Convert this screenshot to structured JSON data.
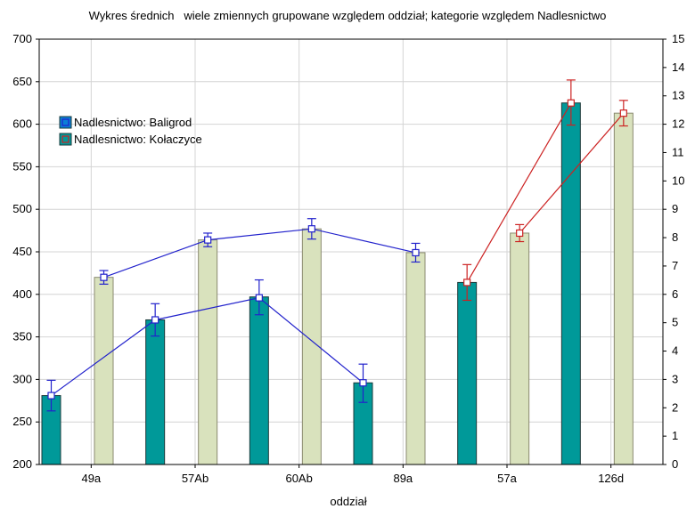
{
  "chart_data": {
    "type": "bar",
    "title": "Wykres średnich   wiele zmiennych grupowane względem oddział; kategorie względem Nadlesnictwo",
    "xlabel": "oddział",
    "ylabel": "",
    "categories": [
      "49a",
      "57Ab",
      "60Ab",
      "89a",
      "57a",
      "126d"
    ],
    "ylim": [
      200,
      700
    ],
    "yticks": [
      200,
      250,
      300,
      350,
      400,
      450,
      500,
      550,
      600,
      650,
      700
    ],
    "y2lim": [
      0,
      15
    ],
    "y2ticks": [
      0,
      1,
      2,
      3,
      4,
      5,
      6,
      7,
      8,
      9,
      10,
      11,
      12,
      13,
      14,
      15
    ],
    "grid": true,
    "legend_position": "top-left",
    "bars": [
      {
        "category": "49a",
        "teal": 281,
        "beige": 420
      },
      {
        "category": "57Ab",
        "teal": 370,
        "beige": 464
      },
      {
        "category": "60Ab",
        "teal": 397,
        "beige": 477
      },
      {
        "category": "89a",
        "teal": 296,
        "beige": 449
      },
      {
        "category": "57a",
        "teal": 414,
        "beige": 472
      },
      {
        "category": "126d",
        "teal": 625,
        "beige": 613
      }
    ],
    "series": [
      {
        "name": "Nadlesnictwo: Baligrod",
        "color": "#2222cc",
        "points": [
          {
            "category": "49a",
            "bar": "teal",
            "value": 281,
            "err": [
              263,
              299
            ]
          },
          {
            "category": "49a",
            "bar": "beige",
            "value": 420,
            "err": [
              412,
              428
            ]
          },
          {
            "category": "57Ab",
            "bar": "teal",
            "value": 370,
            "err": [
              351,
              389
            ]
          },
          {
            "category": "57Ab",
            "bar": "beige",
            "value": 464,
            "err": [
              456,
              472
            ]
          },
          {
            "category": "60Ab",
            "bar": "teal",
            "value": 396,
            "err": [
              376,
              417
            ]
          },
          {
            "category": "60Ab",
            "bar": "beige",
            "value": 477,
            "err": [
              465,
              489
            ]
          },
          {
            "category": "89a",
            "bar": "teal",
            "value": 296,
            "err": [
              273,
              318
            ]
          },
          {
            "category": "89a",
            "bar": "beige",
            "value": 449,
            "err": [
              438,
              460
            ]
          }
        ]
      },
      {
        "name": "Nadlesnictwo: Kołaczyce",
        "color": "#cc2222",
        "points": [
          {
            "category": "57a",
            "bar": "teal",
            "value": 414,
            "err": [
              393,
              435
            ]
          },
          {
            "category": "57a",
            "bar": "beige",
            "value": 472,
            "err": [
              462,
              482
            ]
          },
          {
            "category": "126d",
            "bar": "teal",
            "value": 625,
            "err": [
              599,
              652
            ]
          },
          {
            "category": "126d",
            "bar": "beige",
            "value": 613,
            "err": [
              598,
              628
            ]
          }
        ]
      }
    ],
    "colors": {
      "teal_bar": "#009999",
      "beige_bar": "#d9e2bd",
      "grid": "#d4d4d4",
      "axis": "#000000"
    }
  }
}
